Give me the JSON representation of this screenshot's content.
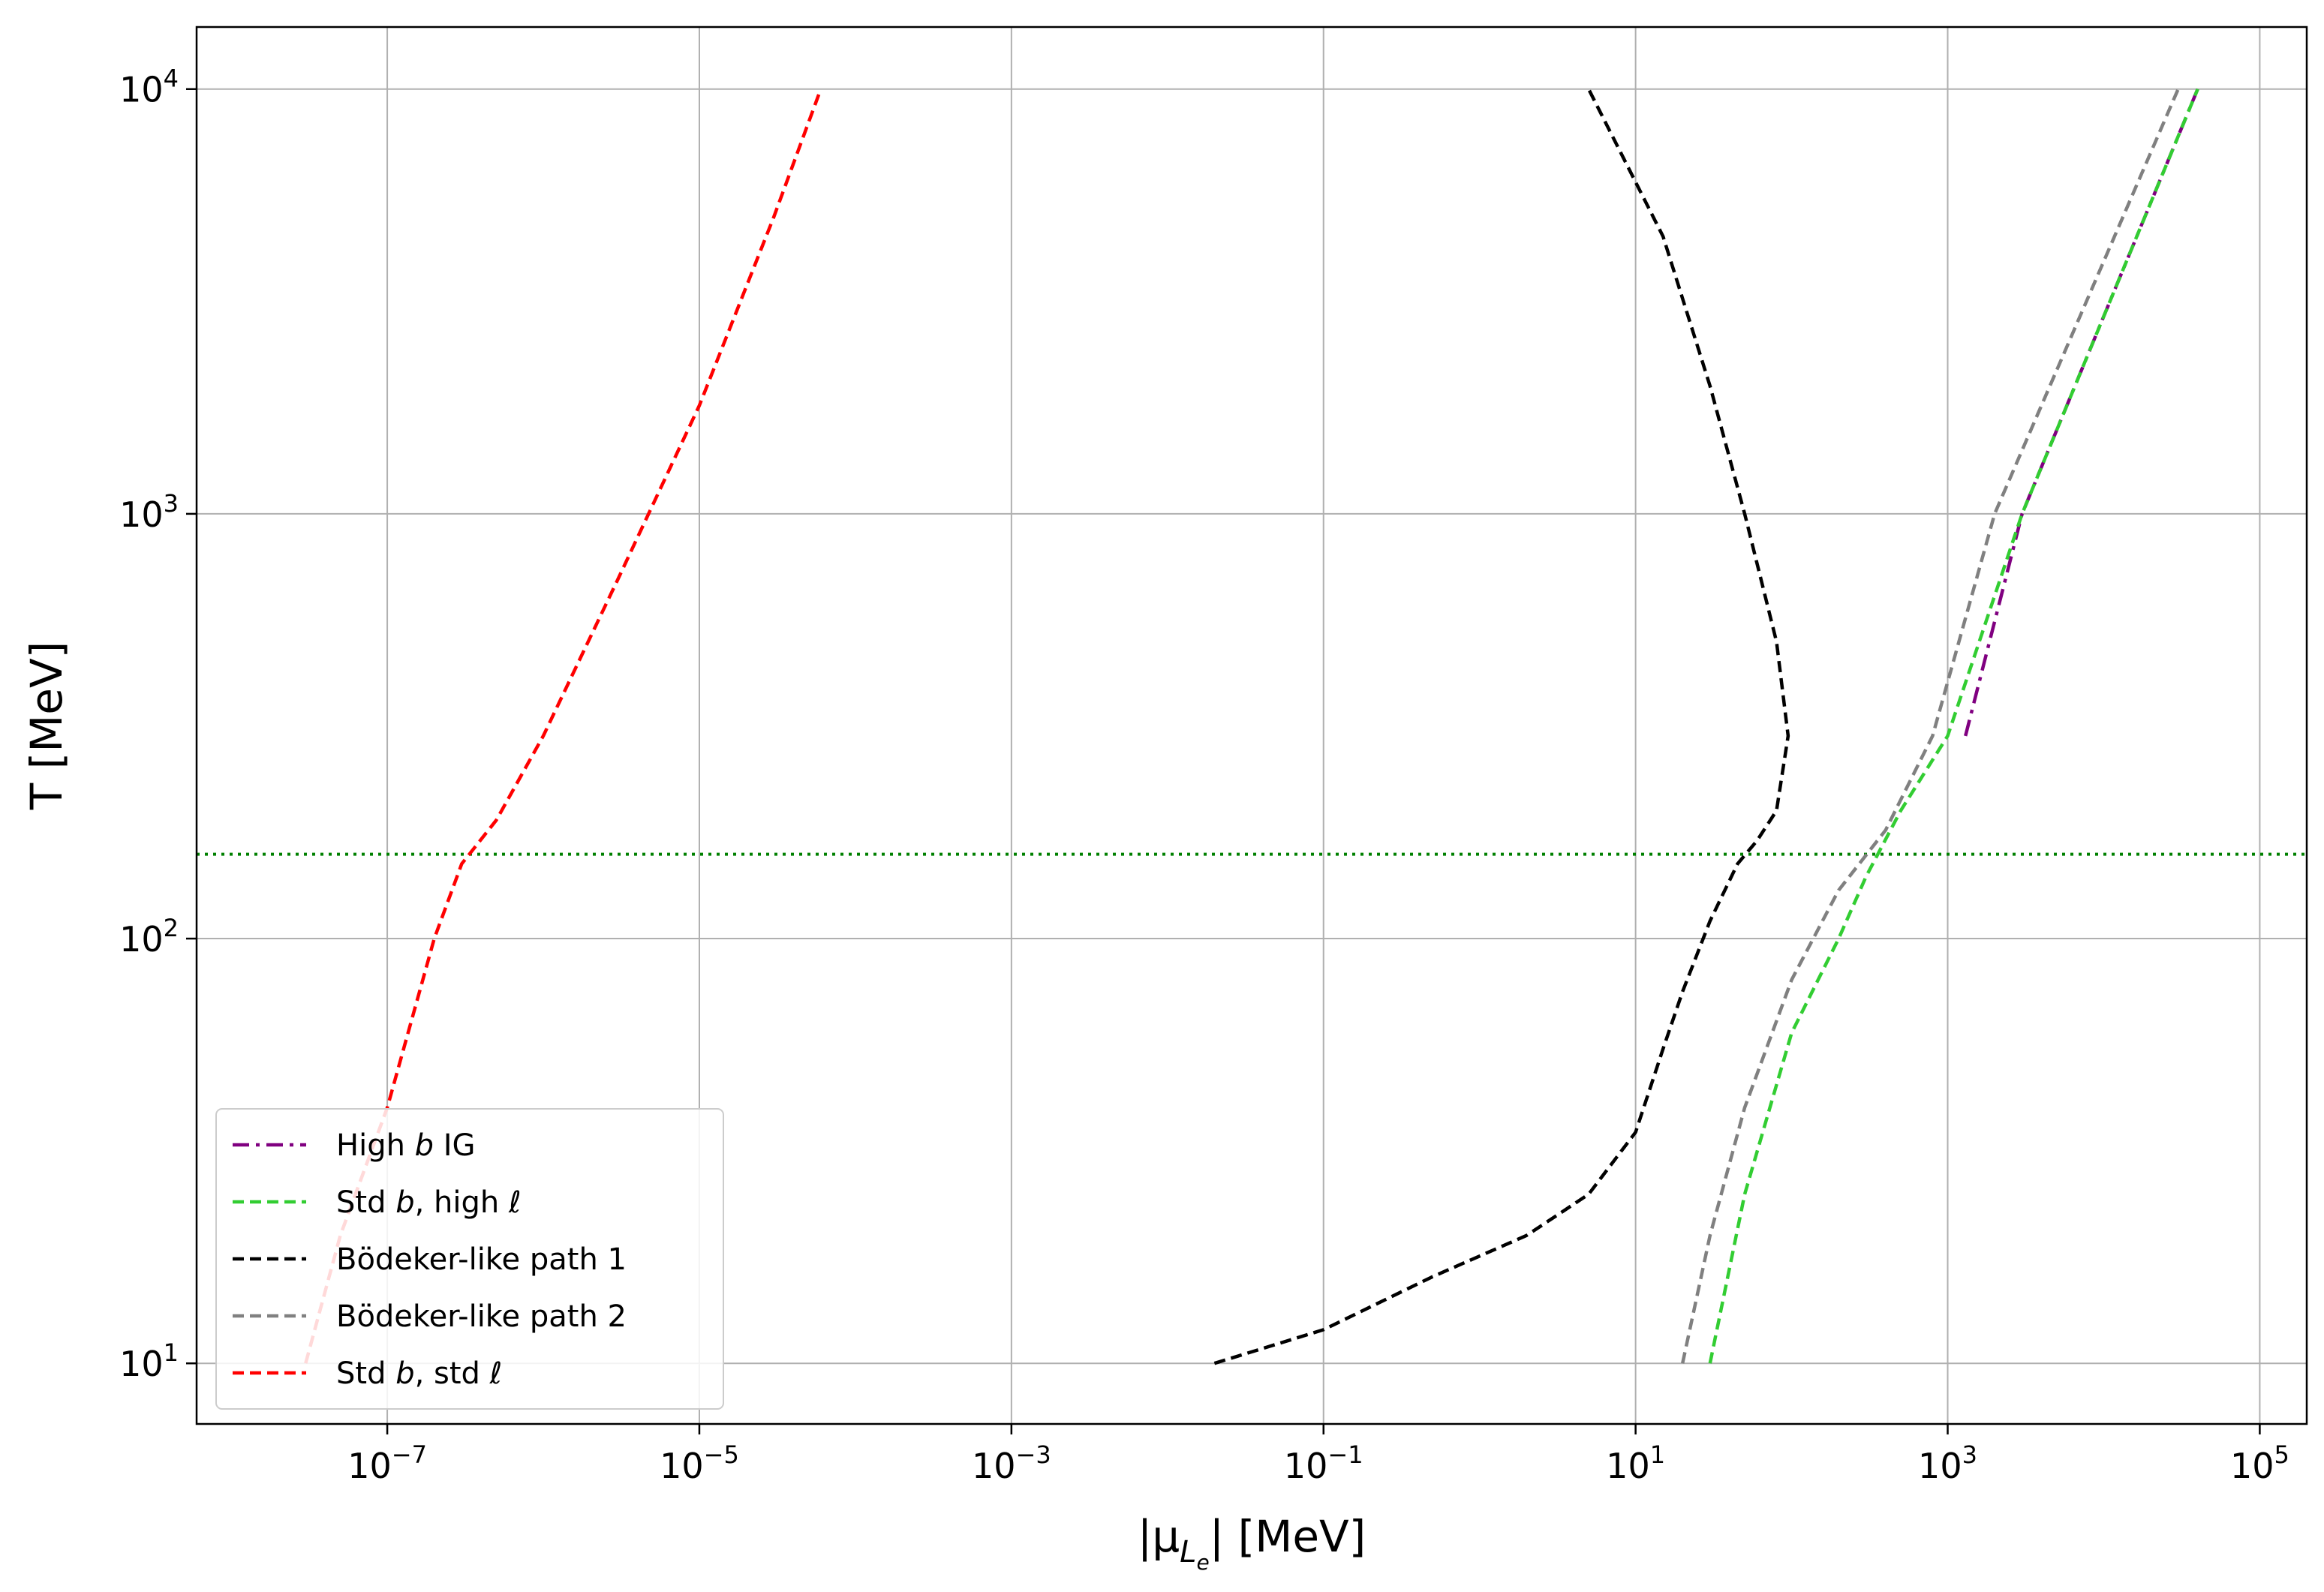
{
  "chart_data": {
    "type": "line",
    "xlabel": "|μ_{L_e}| [MeV]",
    "xlabel_parts": {
      "pre": "|μ",
      "sub": "L",
      "subsub": "e",
      "post": "| [MeV]"
    },
    "ylabel": "T [MeV]",
    "xscale": "log",
    "yscale": "log",
    "xlim": [
      6e-09,
      200000.0
    ],
    "ylim": [
      7.2,
      14000
    ],
    "grid": true,
    "legend_position": "lower-left",
    "x_ticks": [
      {
        "value": 1e-07,
        "base": "10",
        "exp": "−7"
      },
      {
        "value": 1e-05,
        "base": "10",
        "exp": "−5"
      },
      {
        "value": 0.001,
        "base": "10",
        "exp": "−3"
      },
      {
        "value": 0.1,
        "base": "10",
        "exp": "−1"
      },
      {
        "value": 10,
        "base": "10",
        "exp": "1"
      },
      {
        "value": 1000,
        "base": "10",
        "exp": "3"
      },
      {
        "value": 100000,
        "base": "10",
        "exp": "5"
      }
    ],
    "y_ticks": [
      {
        "value": 10,
        "base": "10",
        "exp": "1"
      },
      {
        "value": 100,
        "base": "10",
        "exp": "2"
      },
      {
        "value": 1000,
        "base": "10",
        "exp": "3"
      },
      {
        "value": 10000,
        "base": "10",
        "exp": "4"
      }
    ],
    "reference_lines": [
      {
        "orientation": "horizontal",
        "y": 158,
        "color": "#008000",
        "style": "dotted"
      }
    ],
    "series": [
      {
        "name": "High b IG",
        "legend_parts": [
          "High ",
          "b",
          " IG"
        ],
        "color": "#800080",
        "style": "dashdot",
        "points": [
          [
            1300,
            300
          ],
          [
            3000,
            1000
          ],
          [
            40000,
            10000
          ]
        ]
      },
      {
        "name": "Std b, high ℓ",
        "legend_parts": [
          "Std ",
          "b",
          ", high ",
          "ℓ"
        ],
        "color": "#32cd32",
        "style": "dashed",
        "points": [
          [
            30,
            10
          ],
          [
            50,
            25
          ],
          [
            100,
            60
          ],
          [
            200,
            100
          ],
          [
            300,
            140
          ],
          [
            500,
            200
          ],
          [
            1000,
            300
          ],
          [
            3000,
            1000
          ],
          [
            40000,
            10000
          ]
        ]
      },
      {
        "name": "Bödeker-like path 1",
        "legend_parts": [
          "Bödeker-like path 1"
        ],
        "color": "#000000",
        "style": "dashed",
        "points": [
          [
            0.02,
            10
          ],
          [
            0.1,
            12
          ],
          [
            0.5,
            16
          ],
          [
            2,
            20
          ],
          [
            5,
            25
          ],
          [
            10,
            35
          ],
          [
            15,
            55
          ],
          [
            20,
            75
          ],
          [
            30,
            110
          ],
          [
            45,
            150
          ],
          [
            60,
            170
          ],
          [
            80,
            200
          ],
          [
            95,
            300
          ],
          [
            80,
            500
          ],
          [
            50,
            1000
          ],
          [
            30,
            2000
          ],
          [
            15,
            4500
          ],
          [
            5,
            10000
          ]
        ]
      },
      {
        "name": "Bödeker-like path 2",
        "legend_parts": [
          "Bödeker-like path 2"
        ],
        "color": "#808080",
        "style": "dashed",
        "points": [
          [
            20,
            10
          ],
          [
            30,
            20
          ],
          [
            50,
            40
          ],
          [
            100,
            80
          ],
          [
            200,
            130
          ],
          [
            400,
            180
          ],
          [
            800,
            300
          ],
          [
            2000,
            1000
          ],
          [
            30000,
            10000
          ]
        ]
      },
      {
        "name": "Std b, std ℓ",
        "legend_parts": [
          "Std ",
          "b",
          ", std ",
          "ℓ"
        ],
        "color": "#ff0000",
        "style": "dashed",
        "points": [
          [
            3e-08,
            10
          ],
          [
            5e-08,
            20
          ],
          [
            1e-07,
            40
          ],
          [
            2e-07,
            100
          ],
          [
            3e-07,
            150
          ],
          [
            5e-07,
            190
          ],
          [
            1e-06,
            300
          ],
          [
            3e-06,
            700
          ],
          [
            1e-05,
            1800
          ],
          [
            3e-05,
            5000
          ],
          [
            6e-05,
            10000
          ]
        ]
      }
    ]
  }
}
